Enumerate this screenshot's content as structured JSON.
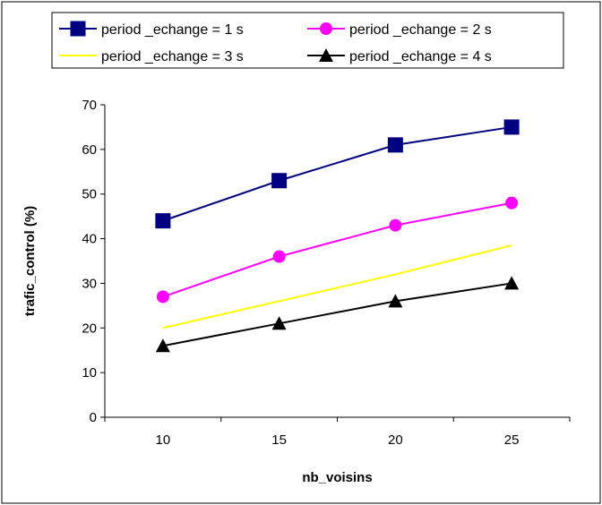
{
  "chart_data": {
    "type": "line",
    "x": [
      10,
      15,
      20,
      25
    ],
    "series": [
      {
        "name": "period _echange = 1 s",
        "values": [
          44,
          53,
          61,
          65
        ],
        "color": "#000080",
        "marker": "square"
      },
      {
        "name": "period _echange = 2 s",
        "values": [
          27,
          36,
          43,
          48
        ],
        "color": "#ff00ff",
        "marker": "circle"
      },
      {
        "name": "period _echange = 3 s",
        "values": [
          20,
          26,
          32,
          38.5
        ],
        "color": "#ffff00",
        "marker": "none"
      },
      {
        "name": "period _echange = 4 s",
        "values": [
          16,
          21,
          26,
          30
        ],
        "color": "#000000",
        "marker": "triangle"
      }
    ],
    "xlabel": "nb_voisins",
    "ylabel": "trafic_control (%)",
    "ylim": [
      0,
      70
    ],
    "yticks": [
      0,
      10,
      20,
      30,
      40,
      50,
      60,
      70
    ],
    "xticks": [
      "10",
      "15",
      "20",
      "25"
    ],
    "grid": false,
    "legend_position": "top"
  }
}
